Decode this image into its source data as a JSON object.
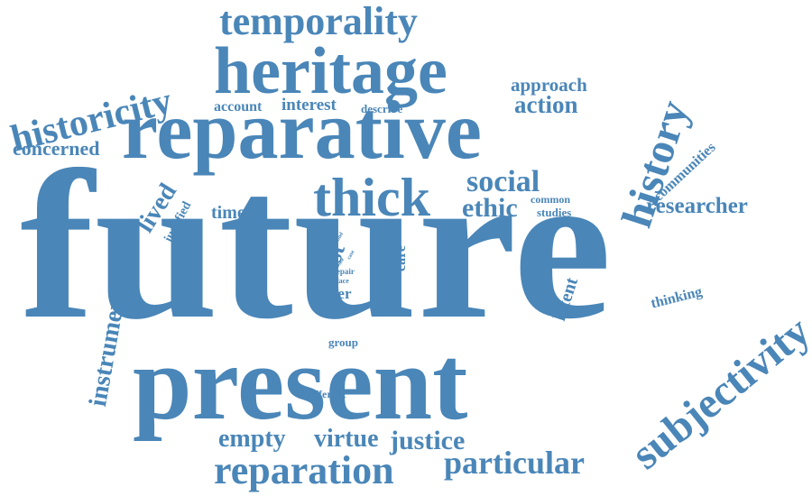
{
  "color": "#4a86b8",
  "words": [
    {
      "id": "future",
      "text": "future"
    },
    {
      "id": "present",
      "text": "present"
    },
    {
      "id": "reparative",
      "text": "reparative"
    },
    {
      "id": "heritage",
      "text": "heritage"
    },
    {
      "id": "temporality",
      "text": "temporality"
    },
    {
      "id": "historicity",
      "text": "historicity"
    },
    {
      "id": "thick",
      "text": "thick"
    },
    {
      "id": "history",
      "text": "history"
    },
    {
      "id": "subjectivity",
      "text": "subjectivity"
    },
    {
      "id": "reparation",
      "text": "reparation"
    },
    {
      "id": "particular",
      "text": "particular"
    },
    {
      "id": "justice",
      "text": "justice"
    },
    {
      "id": "empty",
      "text": "empty"
    },
    {
      "id": "virtue",
      "text": "virtue"
    },
    {
      "id": "social",
      "text": "social"
    },
    {
      "id": "ethic",
      "text": "ethic"
    },
    {
      "id": "instrumental",
      "text": "instrumental"
    },
    {
      "id": "lived",
      "text": "lived"
    },
    {
      "id": "concerned",
      "text": "concerned"
    },
    {
      "id": "approach",
      "text": "approach"
    },
    {
      "id": "action",
      "text": "action"
    },
    {
      "id": "researcher",
      "text": "researcher"
    },
    {
      "id": "communities",
      "text": "communities"
    },
    {
      "id": "interest",
      "text": "interest"
    },
    {
      "id": "account",
      "text": "account"
    },
    {
      "id": "describe",
      "text": "describe"
    },
    {
      "id": "time",
      "text": "time"
    },
    {
      "id": "justified",
      "text": "justified"
    },
    {
      "id": "past",
      "text": "past"
    },
    {
      "id": "care",
      "text": "care"
    },
    {
      "id": "paper",
      "text": "paper"
    },
    {
      "id": "work",
      "text": "work"
    },
    {
      "id": "group",
      "text": "group"
    },
    {
      "id": "different",
      "text": "different"
    },
    {
      "id": "latent",
      "text": "latent"
    },
    {
      "id": "thinking",
      "text": "thinking"
    },
    {
      "id": "common",
      "text": "common"
    },
    {
      "id": "studies",
      "text": "studies"
    },
    {
      "id": "repair",
      "text": "repair"
    },
    {
      "id": "place",
      "text": "place"
    },
    {
      "id": "kind",
      "text": "kind"
    },
    {
      "id": "see",
      "text": "see"
    },
    {
      "id": "case",
      "text": "case"
    }
  ]
}
